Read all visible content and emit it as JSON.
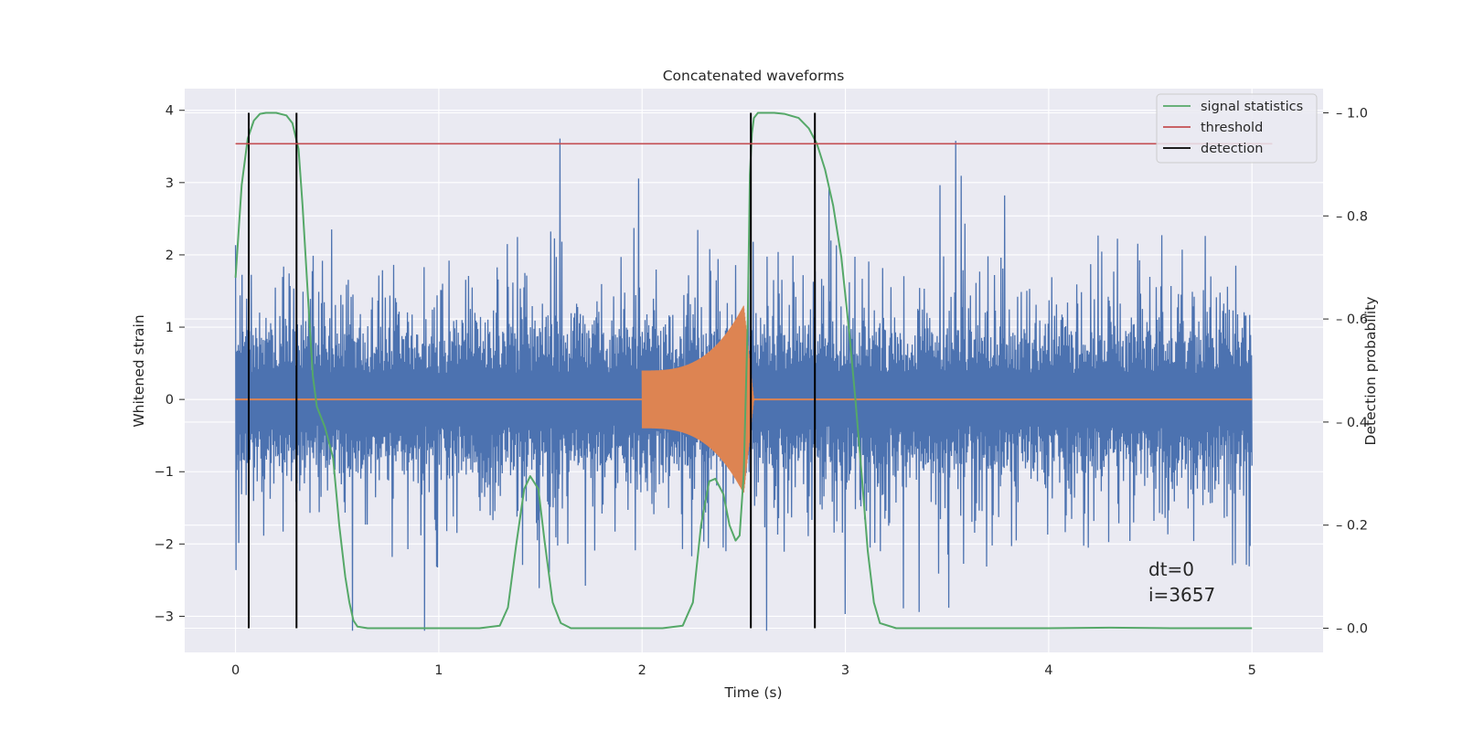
{
  "chart_data": {
    "type": "line",
    "title": "Concatenated waveforms",
    "xlabel": "Time (s)",
    "ylabel": "Whitened strain",
    "y2label": "Detection probability",
    "xlim": [
      -0.25,
      5.35
    ],
    "ylim": [
      -3.5,
      4.3
    ],
    "y2lim": [
      -0.047,
      1.047
    ],
    "xticks": [
      0,
      1,
      2,
      3,
      4,
      5
    ],
    "yticks": [
      -3,
      -2,
      -1,
      0,
      1,
      2,
      3,
      4
    ],
    "y2ticks": [
      0.0,
      0.2,
      0.4,
      0.6,
      0.8,
      1.0
    ],
    "y2tick_labels": [
      "0.0",
      "0.2",
      "0.4",
      "0.6",
      "0.8",
      "1.0"
    ],
    "grid": true,
    "legend_position": "top-right",
    "series": [
      {
        "name": "",
        "kind": "noise",
        "color": "#4c72b0",
        "x_range": [
          0,
          5
        ],
        "envelope": [
          -3.2,
          3.95
        ]
      },
      {
        "name": "",
        "kind": "chirp",
        "color": "#dd8452",
        "x_range": [
          2.0,
          2.55
        ],
        "amplitude_start": 0.4,
        "amplitude_end": 1.3,
        "peak_x": 2.5,
        "baseline": 0
      },
      {
        "name": "signal statistics",
        "color": "#55a868",
        "axis": "right",
        "x": [
          0.0,
          0.03,
          0.06,
          0.09,
          0.12,
          0.15,
          0.2,
          0.25,
          0.28,
          0.31,
          0.33,
          0.36,
          0.38,
          0.4,
          0.44,
          0.48,
          0.51,
          0.54,
          0.56,
          0.58,
          0.6,
          0.65,
          0.8,
          1.2,
          1.3,
          1.34,
          1.38,
          1.42,
          1.45,
          1.49,
          1.52,
          1.56,
          1.6,
          1.65,
          1.8,
          2.1,
          2.2,
          2.25,
          2.29,
          2.33,
          2.36,
          2.4,
          2.43,
          2.46,
          2.48,
          2.5,
          2.52,
          2.53,
          2.54,
          2.55,
          2.57,
          2.6,
          2.65,
          2.7,
          2.77,
          2.82,
          2.86,
          2.9,
          2.94,
          2.98,
          3.02,
          3.05,
          3.08,
          3.11,
          3.14,
          3.17,
          3.25,
          3.5,
          4.0,
          4.3,
          4.6,
          5.0
        ],
        "y": [
          0.68,
          0.86,
          0.95,
          0.985,
          0.998,
          1.0,
          1.0,
          0.995,
          0.98,
          0.93,
          0.82,
          0.62,
          0.49,
          0.43,
          0.39,
          0.33,
          0.2,
          0.1,
          0.05,
          0.015,
          0.003,
          0.0,
          0.0,
          0.0,
          0.005,
          0.04,
          0.16,
          0.27,
          0.295,
          0.27,
          0.17,
          0.05,
          0.01,
          0.0,
          0.0,
          0.0,
          0.005,
          0.05,
          0.2,
          0.285,
          0.29,
          0.26,
          0.2,
          0.17,
          0.18,
          0.3,
          0.6,
          0.88,
          0.96,
          0.99,
          1.0,
          1.0,
          1.0,
          0.998,
          0.99,
          0.97,
          0.94,
          0.89,
          0.82,
          0.72,
          0.57,
          0.44,
          0.3,
          0.15,
          0.05,
          0.01,
          0.0,
          0.0,
          0.0,
          0.001,
          0.0,
          0.0
        ]
      },
      {
        "name": "threshold",
        "color": "#c44e52",
        "axis": "right",
        "x": [
          0,
          5.1
        ],
        "y": [
          0.94,
          0.94
        ]
      },
      {
        "name": "detection",
        "color": "#000000",
        "axis": "right",
        "kind": "vlines",
        "x": [
          0.065,
          0.3,
          2.535,
          2.85
        ],
        "y_range": [
          0,
          1.0
        ]
      }
    ],
    "annotation": {
      "lines": [
        "dt=0",
        "i=3657"
      ],
      "x": 4.5,
      "y": -2.35
    }
  }
}
